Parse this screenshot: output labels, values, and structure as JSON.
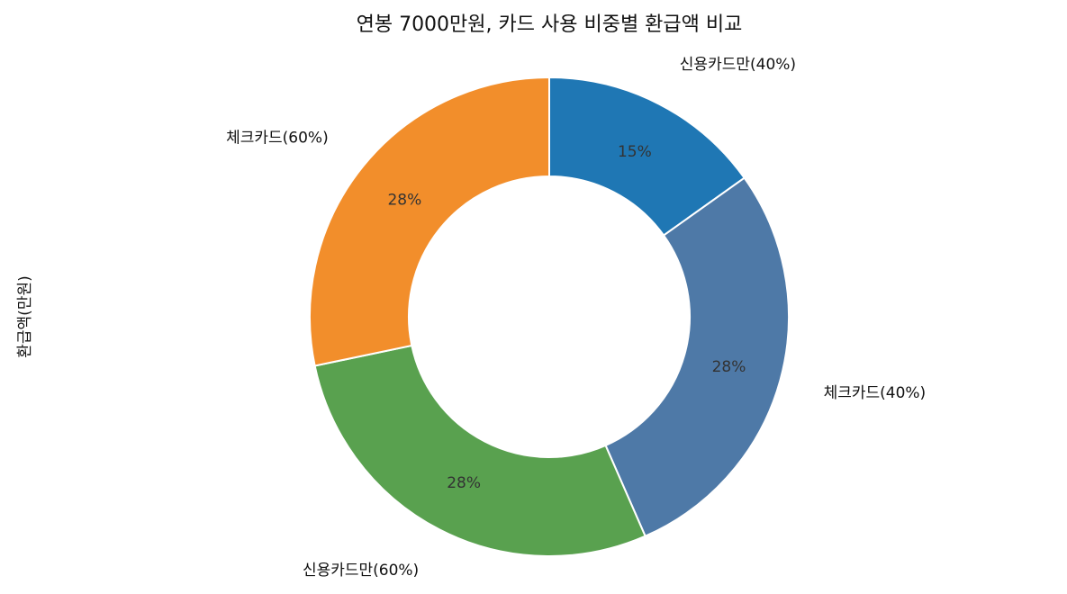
{
  "chart_data": {
    "type": "pie",
    "donut": true,
    "title": "연봉 7000만원, 카드 사용 비중별 환급액 비교",
    "ylabel": "환급액(만원)",
    "start_angle_deg": 90,
    "direction": "clockwise",
    "slices": [
      {
        "label": "신용카드만(40%)",
        "value": 15,
        "pct_label": "15%",
        "color": "#1f77b4"
      },
      {
        "label": "체크카드(40%)",
        "value": 28,
        "pct_label": "28%",
        "color": "#4e79a7"
      },
      {
        "label": "신용카드만(60%)",
        "value": 28,
        "pct_label": "28%",
        "color": "#59a14f"
      },
      {
        "label": "체크카드(60%)",
        "value": 28,
        "pct_label": "28%",
        "color": "#f28e2b"
      }
    ]
  }
}
